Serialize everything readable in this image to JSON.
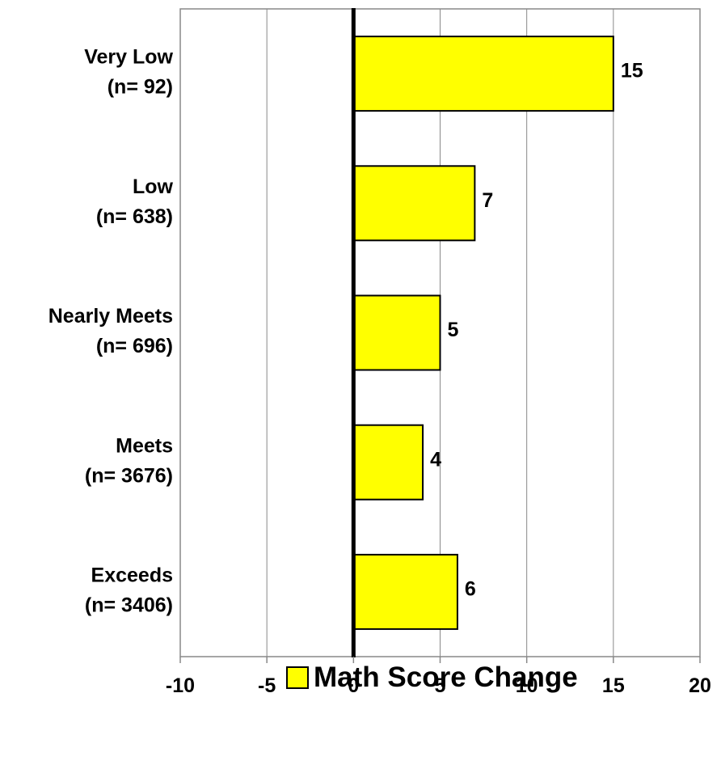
{
  "chart_data": {
    "type": "bar",
    "orientation": "horizontal",
    "categories": [
      [
        "Very Low",
        "(n= 92)"
      ],
      [
        "Low",
        "(n= 638)"
      ],
      [
        "Nearly Meets",
        "(n= 696)"
      ],
      [
        "Meets",
        "(n= 3676)"
      ],
      [
        "Exceeds",
        "(n= 3406)"
      ]
    ],
    "series": [
      {
        "name": "Math Score Change",
        "values": [
          15,
          7,
          5,
          4,
          6
        ],
        "color": "#ffff00",
        "data_labels": [
          "15",
          "7",
          "5",
          "4",
          "6"
        ]
      }
    ],
    "xlim": [
      -10,
      20
    ],
    "xticks": [
      -10,
      -5,
      0,
      5,
      10,
      15,
      20
    ],
    "xtick_labels": [
      "-10",
      "-5",
      "0",
      "5",
      "10",
      "15",
      "20"
    ],
    "grid": "vertical",
    "legend": "bottom",
    "title": "",
    "xlabel": "",
    "ylabel": ""
  },
  "colors": {
    "bar_fill": "#ffff00",
    "bar_stroke": "#000000",
    "grid": "#888888",
    "axis": "#000000",
    "background": "#ffffff"
  }
}
